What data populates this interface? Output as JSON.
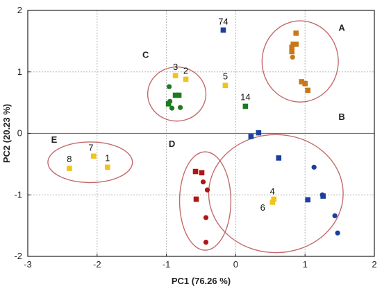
{
  "chart_data": {
    "type": "scatter",
    "xlabel": "PC1 (76.26 %)",
    "ylabel": "PC2 (20.23 %)",
    "xlim": [
      -3,
      2
    ],
    "ylim": [
      -2,
      2
    ],
    "xticks": [
      "-3",
      "-2",
      "-1",
      "0",
      "1",
      "2"
    ],
    "yticks": [
      "-2",
      "-1",
      "0",
      "1",
      "2"
    ],
    "grid": true,
    "zero_line_y": 0,
    "colors": {
      "orange": "#c87818",
      "blue": "#1a3f9e",
      "yellow": "#f0c419",
      "green": "#1f7a1f",
      "red": "#b01515",
      "ellipse": "#c46a6a",
      "zero_line": "#b05050"
    },
    "points": [
      {
        "x": 0.87,
        "y": 1.63,
        "color": "orange",
        "shape": "square"
      },
      {
        "x": 0.83,
        "y": 1.45,
        "color": "orange",
        "shape": "square"
      },
      {
        "x": 0.87,
        "y": 1.45,
        "color": "orange",
        "shape": "square"
      },
      {
        "x": 0.81,
        "y": 1.4,
        "color": "orange",
        "shape": "square"
      },
      {
        "x": 0.81,
        "y": 1.33,
        "color": "orange",
        "shape": "square"
      },
      {
        "x": 0.82,
        "y": 1.24,
        "color": "orange",
        "shape": "circle"
      },
      {
        "x": 0.95,
        "y": 0.84,
        "color": "orange",
        "shape": "square"
      },
      {
        "x": 1.0,
        "y": 0.81,
        "color": "orange",
        "shape": "square"
      },
      {
        "x": 1.04,
        "y": 0.7,
        "color": "orange",
        "shape": "square"
      },
      {
        "x": -0.18,
        "y": 1.68,
        "color": "blue",
        "shape": "square",
        "label": "74"
      },
      {
        "x": 0.22,
        "y": -0.05,
        "color": "blue",
        "shape": "square"
      },
      {
        "x": 0.33,
        "y": 0.01,
        "color": "blue",
        "shape": "square"
      },
      {
        "x": 0.62,
        "y": -0.4,
        "color": "blue",
        "shape": "square"
      },
      {
        "x": 1.13,
        "y": -0.55,
        "color": "blue",
        "shape": "circle"
      },
      {
        "x": 1.25,
        "y": -1.0,
        "color": "blue",
        "shape": "circle"
      },
      {
        "x": 1.26,
        "y": -1.02,
        "color": "blue",
        "shape": "square"
      },
      {
        "x": 1.04,
        "y": -1.08,
        "color": "blue",
        "shape": "square"
      },
      {
        "x": 1.43,
        "y": -1.34,
        "color": "blue",
        "shape": "circle"
      },
      {
        "x": 1.47,
        "y": -1.62,
        "color": "blue",
        "shape": "circle"
      },
      {
        "x": -0.87,
        "y": 0.94,
        "color": "yellow",
        "shape": "square",
        "label": "3"
      },
      {
        "x": -0.72,
        "y": 0.88,
        "color": "yellow",
        "shape": "square",
        "label": "2"
      },
      {
        "x": -0.15,
        "y": 0.78,
        "color": "yellow",
        "shape": "square",
        "label": "5"
      },
      {
        "x": -2.05,
        "y": -0.37,
        "color": "yellow",
        "shape": "square",
        "label": "7"
      },
      {
        "x": -2.4,
        "y": -0.57,
        "color": "yellow",
        "shape": "square",
        "label": "8"
      },
      {
        "x": -1.85,
        "y": -0.55,
        "color": "yellow",
        "shape": "square",
        "label": "1"
      },
      {
        "x": 0.55,
        "y": -1.07,
        "color": "yellow",
        "shape": "square",
        "label": "4"
      },
      {
        "x": 0.53,
        "y": -1.12,
        "color": "yellow",
        "shape": "square",
        "label": "6"
      },
      {
        "x": -0.96,
        "y": 0.76,
        "color": "green",
        "shape": "circle"
      },
      {
        "x": -0.87,
        "y": 0.62,
        "color": "green",
        "shape": "square"
      },
      {
        "x": -0.82,
        "y": 0.62,
        "color": "green",
        "shape": "square"
      },
      {
        "x": -0.95,
        "y": 0.52,
        "color": "green",
        "shape": "circle"
      },
      {
        "x": -0.97,
        "y": 0.48,
        "color": "green",
        "shape": "square"
      },
      {
        "x": -0.92,
        "y": 0.41,
        "color": "green",
        "shape": "circle"
      },
      {
        "x": -0.8,
        "y": 0.42,
        "color": "green",
        "shape": "circle"
      },
      {
        "x": 0.14,
        "y": 0.44,
        "color": "green",
        "shape": "square",
        "label": "14"
      },
      {
        "x": -0.58,
        "y": -0.62,
        "color": "red",
        "shape": "square"
      },
      {
        "x": -0.49,
        "y": -0.64,
        "color": "red",
        "shape": "square"
      },
      {
        "x": -0.47,
        "y": -0.79,
        "color": "red",
        "shape": "circle"
      },
      {
        "x": -0.41,
        "y": -0.92,
        "color": "red",
        "shape": "circle"
      },
      {
        "x": -0.57,
        "y": -1.07,
        "color": "red",
        "shape": "square"
      },
      {
        "x": -0.43,
        "y": -1.37,
        "color": "red",
        "shape": "circle"
      },
      {
        "x": -0.43,
        "y": -1.77,
        "color": "red",
        "shape": "circle"
      }
    ],
    "groups": [
      {
        "label": "A",
        "cx": 0.93,
        "cy": 1.17,
        "rx": 0.55,
        "ry": 0.66,
        "label_x": 1.53,
        "label_y": 1.67
      },
      {
        "label": "B",
        "cx": 0.58,
        "cy": -0.98,
        "rx": 0.97,
        "ry": 0.96,
        "label_x": 1.53,
        "label_y": 0.22
      },
      {
        "label": "C",
        "cx": -0.85,
        "cy": 0.64,
        "rx": 0.42,
        "ry": 0.44,
        "label_x": -1.3,
        "label_y": 1.23
      },
      {
        "label": "D",
        "cx": -0.44,
        "cy": -1.1,
        "rx": 0.37,
        "ry": 0.8,
        "label_x": -0.92,
        "label_y": -0.22
      },
      {
        "label": "E",
        "cx": -2.1,
        "cy": -0.47,
        "rx": 0.61,
        "ry": 0.33,
        "label_x": -2.62,
        "label_y": -0.15
      }
    ]
  }
}
